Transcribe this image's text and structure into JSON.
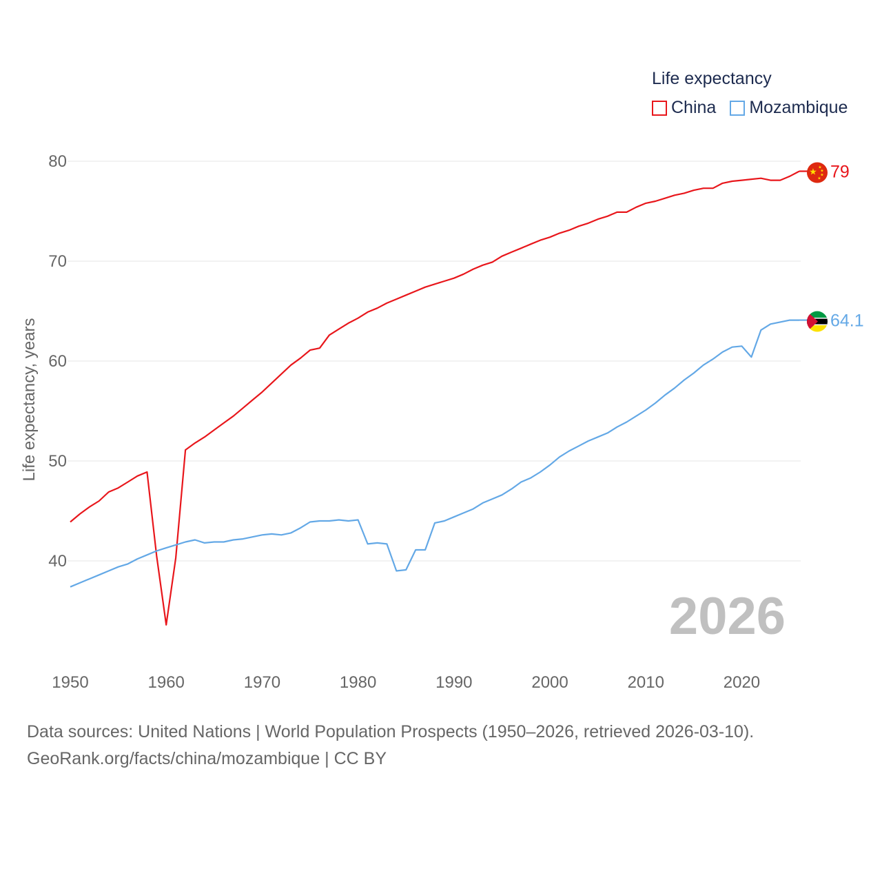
{
  "legend": {
    "title": "Life expectancy",
    "items": [
      {
        "label": "China",
        "color": "#e8161b"
      },
      {
        "label": "Mozambique",
        "color": "#63a8e6"
      }
    ]
  },
  "source": {
    "line1": "Data sources: United Nations | World Population Prospects (1950–2026, retrieved 2026-03-10).",
    "line2": "GeoRank.org/facts/china/mozambique | CC BY"
  },
  "chart_data": {
    "type": "line",
    "title": "Life expectancy",
    "xlabel": "",
    "ylabel": "Life expectancy, years",
    "xlim": [
      1950,
      2026
    ],
    "ylim": [
      34,
      82
    ],
    "xticks": [
      1950,
      1960,
      1970,
      1980,
      1990,
      2000,
      2010,
      2020
    ],
    "yticks": [
      40,
      50,
      60,
      70,
      80
    ],
    "grid": true,
    "current_year": "2026",
    "series": [
      {
        "name": "China",
        "color": "#e8161b",
        "end_label": "79",
        "flag_icon": "china-flag-icon",
        "x": [
          1950,
          1951,
          1952,
          1953,
          1954,
          1955,
          1956,
          1957,
          1958,
          1959,
          1960,
          1961,
          1962,
          1963,
          1964,
          1965,
          1966,
          1967,
          1968,
          1969,
          1970,
          1971,
          1972,
          1973,
          1974,
          1975,
          1976,
          1977,
          1978,
          1979,
          1980,
          1981,
          1982,
          1983,
          1984,
          1985,
          1986,
          1987,
          1988,
          1989,
          1990,
          1991,
          1992,
          1993,
          1994,
          1995,
          1996,
          1997,
          1998,
          1999,
          2000,
          2001,
          2002,
          2003,
          2004,
          2005,
          2006,
          2007,
          2008,
          2009,
          2010,
          2011,
          2012,
          2013,
          2014,
          2015,
          2016,
          2017,
          2018,
          2019,
          2020,
          2021,
          2022,
          2023,
          2024,
          2025,
          2026
        ],
        "values": [
          43.9,
          44.7,
          45.4,
          46.0,
          46.9,
          47.3,
          47.9,
          48.5,
          48.9,
          40.5,
          33.6,
          40.3,
          51.1,
          51.8,
          52.4,
          53.1,
          53.8,
          54.5,
          55.3,
          56.1,
          56.9,
          57.8,
          58.7,
          59.6,
          60.3,
          61.1,
          61.3,
          62.6,
          63.2,
          63.8,
          64.3,
          64.9,
          65.3,
          65.8,
          66.2,
          66.6,
          67.0,
          67.4,
          67.7,
          68.0,
          68.3,
          68.7,
          69.2,
          69.6,
          69.9,
          70.5,
          70.9,
          71.3,
          71.7,
          72.1,
          72.4,
          72.8,
          73.1,
          73.5,
          73.8,
          74.2,
          74.5,
          74.9,
          74.9,
          75.4,
          75.8,
          76.0,
          76.3,
          76.6,
          76.8,
          77.1,
          77.3,
          77.3,
          77.8,
          78.0,
          78.1,
          78.2,
          78.3,
          78.1,
          78.1,
          78.5,
          79.0
        ]
      },
      {
        "name": "Mozambique",
        "color": "#63a8e6",
        "end_label": "64.1",
        "flag_icon": "mozambique-flag-icon",
        "x": [
          1950,
          1951,
          1952,
          1953,
          1954,
          1955,
          1956,
          1957,
          1958,
          1959,
          1960,
          1961,
          1962,
          1963,
          1964,
          1965,
          1966,
          1967,
          1968,
          1969,
          1970,
          1971,
          1972,
          1973,
          1974,
          1975,
          1976,
          1977,
          1978,
          1979,
          1980,
          1981,
          1982,
          1983,
          1984,
          1985,
          1986,
          1987,
          1988,
          1989,
          1990,
          1991,
          1992,
          1993,
          1994,
          1995,
          1996,
          1997,
          1998,
          1999,
          2000,
          2001,
          2002,
          2003,
          2004,
          2005,
          2006,
          2007,
          2008,
          2009,
          2010,
          2011,
          2012,
          2013,
          2014,
          2015,
          2016,
          2017,
          2018,
          2019,
          2020,
          2021,
          2022,
          2023,
          2024,
          2025,
          2026
        ],
        "values": [
          37.4,
          37.8,
          38.2,
          38.6,
          39.0,
          39.4,
          39.7,
          40.2,
          40.6,
          41.0,
          41.3,
          41.6,
          41.9,
          42.1,
          41.8,
          41.9,
          41.9,
          42.1,
          42.2,
          42.4,
          42.6,
          42.7,
          42.6,
          42.8,
          43.3,
          43.9,
          44.0,
          44.0,
          44.1,
          44.0,
          44.1,
          41.7,
          41.8,
          41.7,
          39.0,
          39.1,
          41.1,
          41.1,
          43.8,
          44.0,
          44.4,
          44.8,
          45.2,
          45.8,
          46.2,
          46.6,
          47.2,
          47.9,
          48.3,
          48.9,
          49.6,
          50.4,
          51.0,
          51.5,
          52.0,
          52.4,
          52.8,
          53.4,
          53.9,
          54.5,
          55.1,
          55.8,
          56.6,
          57.3,
          58.1,
          58.8,
          59.6,
          60.2,
          60.9,
          61.4,
          61.5,
          60.4,
          63.1,
          63.7,
          63.9,
          64.1,
          64.1
        ]
      }
    ]
  }
}
